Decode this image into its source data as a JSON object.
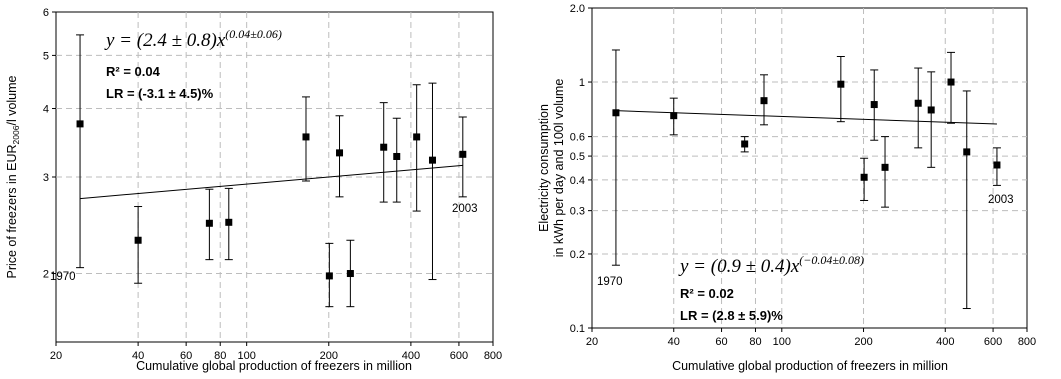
{
  "chart_data": [
    {
      "type": "scatter",
      "log_x": true,
      "log_y": true,
      "xlim": [
        20,
        800
      ],
      "ylim": [
        1.5,
        6
      ],
      "grid": true,
      "x_ticks": [
        20,
        40,
        60,
        80,
        100,
        200,
        400,
        600,
        800
      ],
      "y_ticks": [
        2,
        3,
        4,
        5,
        6
      ],
      "xlabel": "Cumulative global production of freezers in million",
      "ylabel_parts": [
        "Price of freezers in EUR",
        "2006",
        "/l volume"
      ],
      "points": [
        {
          "x": 24.5,
          "y": 3.75,
          "lo": 2.05,
          "hi": 5.45
        },
        {
          "x": 40,
          "y": 2.3,
          "lo": 1.92,
          "hi": 2.65
        },
        {
          "x": 73,
          "y": 2.47,
          "lo": 2.12,
          "hi": 2.85
        },
        {
          "x": 86,
          "y": 2.48,
          "lo": 2.12,
          "hi": 2.86
        },
        {
          "x": 165,
          "y": 3.55,
          "lo": 2.95,
          "hi": 4.2
        },
        {
          "x": 201,
          "y": 1.98,
          "lo": 1.74,
          "hi": 2.27
        },
        {
          "x": 219,
          "y": 3.32,
          "lo": 2.76,
          "hi": 3.88
        },
        {
          "x": 240,
          "y": 2.0,
          "lo": 1.74,
          "hi": 2.3
        },
        {
          "x": 318,
          "y": 3.4,
          "lo": 2.7,
          "hi": 4.1
        },
        {
          "x": 355,
          "y": 3.27,
          "lo": 2.7,
          "hi": 3.84
        },
        {
          "x": 420,
          "y": 3.55,
          "lo": 2.6,
          "hi": 4.42
        },
        {
          "x": 480,
          "y": 3.22,
          "lo": 1.95,
          "hi": 4.45
        },
        {
          "x": 620,
          "y": 3.3,
          "lo": 2.76,
          "hi": 3.86
        }
      ],
      "fit_line": {
        "x": [
          24.5,
          620
        ],
        "y": [
          2.74,
          3.15
        ]
      },
      "annotations": {
        "eq_prefix": "y = (2.4 ± 0.8)x",
        "eq_exp": "(0.04±0.06)",
        "r2": "R² = 0.04",
        "lr": "LR = (-3.1 ± 4.5)%",
        "year_start": "1970",
        "year_end": "2003"
      }
    },
    {
      "type": "scatter",
      "log_x": true,
      "log_y": true,
      "xlim": [
        20,
        800
      ],
      "ylim": [
        0.1,
        2.0
      ],
      "grid": true,
      "x_ticks": [
        20,
        40,
        60,
        80,
        100,
        200,
        400,
        600,
        800
      ],
      "y_ticks": [
        0.1,
        0.2,
        0.3,
        0.4,
        0.5,
        0.6,
        1,
        2.0
      ],
      "y_tick_labels": [
        "0.1",
        "0.2",
        "0.3",
        "0.4",
        "0.5",
        "0.6",
        "1",
        "2.0"
      ],
      "xlabel": "Cumulative global production of freezers in million",
      "ylabel_lines": [
        "Electricity consumption",
        "in kWh per day and 100l volume"
      ],
      "points": [
        {
          "x": 24.5,
          "y": 0.75,
          "lo": 0.18,
          "hi": 1.35
        },
        {
          "x": 40,
          "y": 0.73,
          "lo": 0.61,
          "hi": 0.86
        },
        {
          "x": 73,
          "y": 0.56,
          "lo": 0.52,
          "hi": 0.6
        },
        {
          "x": 86,
          "y": 0.84,
          "lo": 0.67,
          "hi": 1.07
        },
        {
          "x": 165,
          "y": 0.98,
          "lo": 0.69,
          "hi": 1.27
        },
        {
          "x": 201,
          "y": 0.41,
          "lo": 0.33,
          "hi": 0.49
        },
        {
          "x": 219,
          "y": 0.81,
          "lo": 0.58,
          "hi": 1.12
        },
        {
          "x": 240,
          "y": 0.45,
          "lo": 0.31,
          "hi": 0.6
        },
        {
          "x": 318,
          "y": 0.82,
          "lo": 0.54,
          "hi": 1.14
        },
        {
          "x": 355,
          "y": 0.77,
          "lo": 0.45,
          "hi": 1.1
        },
        {
          "x": 420,
          "y": 1.0,
          "lo": 0.68,
          "hi": 1.32
        },
        {
          "x": 480,
          "y": 0.52,
          "lo": 0.12,
          "hi": 0.92
        },
        {
          "x": 620,
          "y": 0.46,
          "lo": 0.38,
          "hi": 0.54
        }
      ],
      "fit_line": {
        "x": [
          24.5,
          620
        ],
        "y": [
          0.765,
          0.675
        ]
      },
      "annotations": {
        "eq_prefix": "y = (0.9 ± 0.4)x",
        "eq_exp": "(−0.04±0.08)",
        "r2": "R² = 0.02",
        "lr": "LR = (2.8 ± 5.9)%",
        "year_start": "1970",
        "year_end": "2003"
      }
    }
  ]
}
